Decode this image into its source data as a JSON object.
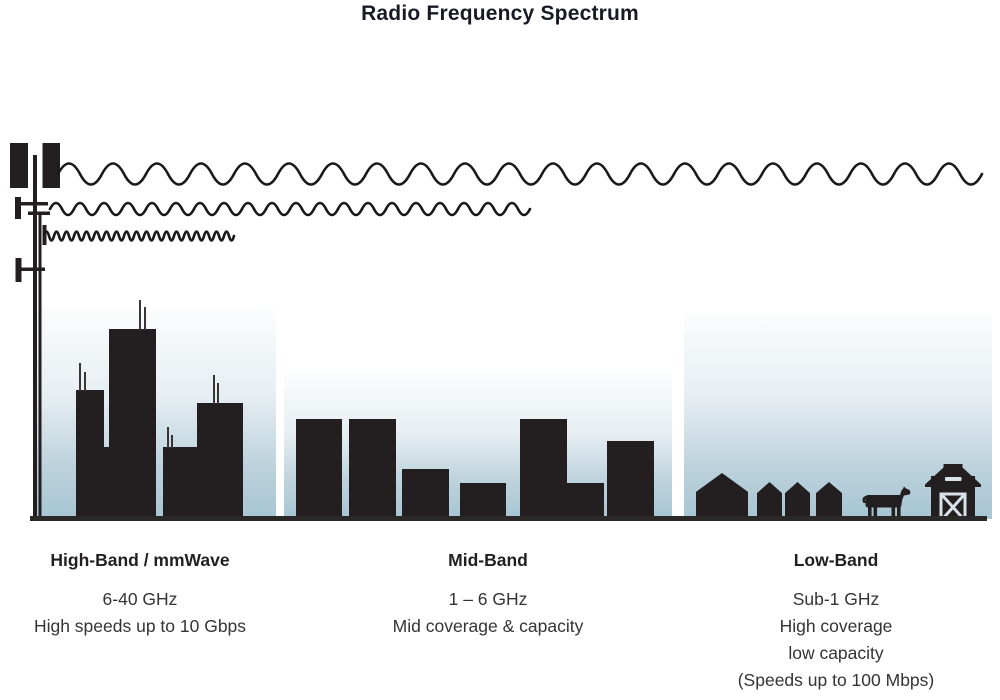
{
  "title": "Radio Frequency Spectrum",
  "bands": [
    {
      "name": "High-Band / mmWave",
      "frequency": "6-40 GHz",
      "details": [
        "High speeds up to 10 Gbps"
      ],
      "scene": "dense city skyline with rooftop antennas",
      "wave": "short wavelength"
    },
    {
      "name": "Mid-Band",
      "frequency": "1 – 6 GHz",
      "details": [
        "Mid coverage & capacity"
      ],
      "scene": "mid-rise town buildings",
      "wave": "medium wavelength"
    },
    {
      "name": "Low-Band",
      "frequency": "Sub-1 GHz",
      "details": [
        "High coverage",
        "low capacity",
        "(Speeds up to 100 Mbps)"
      ],
      "scene": "rural houses, cow and barn",
      "wave": "long wavelength"
    }
  ],
  "icons": [
    "cell-tower-icon",
    "cow-icon",
    "barn-icon",
    "house-icon",
    "radio-wave-icon"
  ],
  "colors": {
    "silhouette": "#231f20",
    "sky_top": "#fcfdfd",
    "sky_bottom": "#a7c5d3",
    "ground": "#2b2828",
    "title_text": "#171b24",
    "body_text": "#363333"
  }
}
